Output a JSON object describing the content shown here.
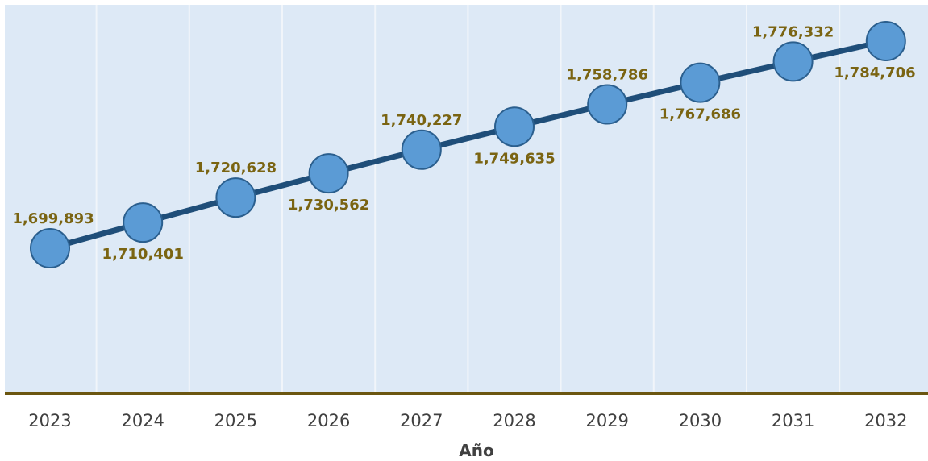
{
  "chart_data": {
    "type": "line",
    "title": "",
    "xlabel": "Año",
    "ylabel": "",
    "categories": [
      "2023",
      "2024",
      "2025",
      "2026",
      "2027",
      "2028",
      "2029",
      "2030",
      "2031",
      "2032"
    ],
    "series": [
      {
        "values": [
          1699893,
          1710401,
          1720628,
          1730562,
          1740227,
          1749635,
          1758786,
          1767686,
          1776332,
          1784706
        ],
        "labels": [
          "1,699,893",
          "1,710,401",
          "1,720,628",
          "1,730,562",
          "1,740,227",
          "1,749,635",
          "1,758,786",
          "1,767,686",
          "1,776,332",
          "1,784,706"
        ]
      }
    ],
    "grid": true,
    "legend": "none",
    "colors": {
      "background": "#dde9f6",
      "line": "#1f4e79",
      "marker": "#5b9bd5",
      "marker_stroke": "#2b5f8e",
      "data_label": "#7a6412",
      "baseline": "#6b5610",
      "tick": "#404040"
    }
  }
}
